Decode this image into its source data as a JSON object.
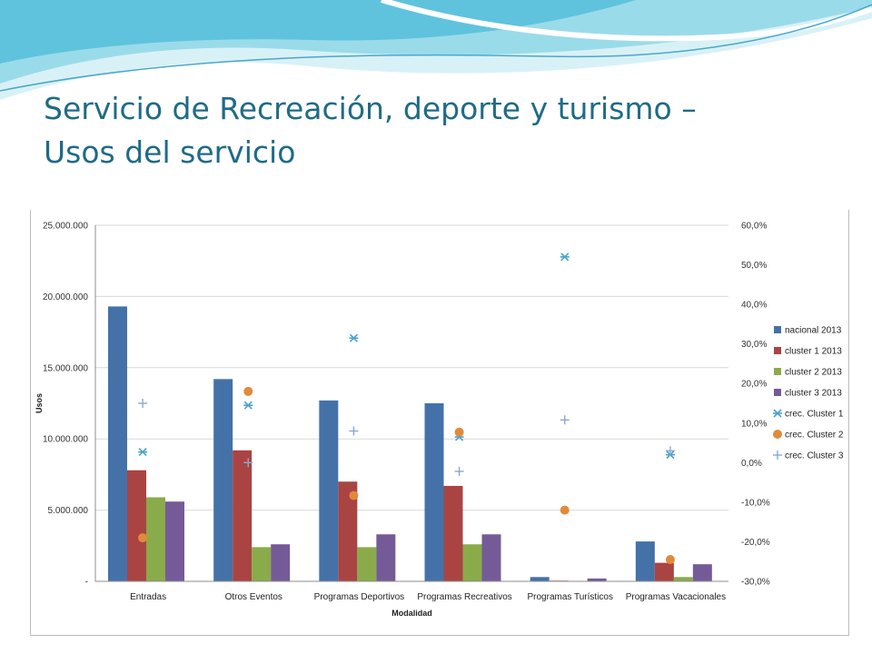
{
  "slide": {
    "title_line1": "Servicio de Recreación, deporte y turismo –",
    "title_line2": "Usos del servicio"
  },
  "theme": {
    "title_color": "#1f6b86",
    "wave_colors": [
      "#5fc3dd",
      "#9adbea",
      "#d8f1f7"
    ]
  },
  "chart_data": {
    "type": "bar",
    "xlabel": "Modalidad",
    "ylabel": "Usos",
    "ylim": [
      0,
      25000000
    ],
    "y2lim": [
      -0.3,
      0.6
    ],
    "y_ticks": [
      "-",
      "5.000.000",
      "10.000.000",
      "15.000.000",
      "20.000.000",
      "25.000.000"
    ],
    "y2_ticks": [
      "-30,0%",
      "-20,0%",
      "-10,0%",
      "0,0%",
      "10,0%",
      "20,0%",
      "30,0%",
      "40,0%",
      "50,0%",
      "60,0%"
    ],
    "grid": true,
    "legend_position": "right",
    "categories": [
      "Entradas",
      "Otros Eventos",
      "Programas Deportivos",
      "Programas Recreativos",
      "Programas Turísticos",
      "Programas Vacacionales"
    ],
    "series": [
      {
        "name": "nacional 2013",
        "axis": "left",
        "kind": "bar",
        "color": "#4472a8",
        "values": [
          19300000,
          14200000,
          12700000,
          12500000,
          300000,
          2800000
        ]
      },
      {
        "name": "cluster 1 2013",
        "axis": "left",
        "kind": "bar",
        "color": "#a94442",
        "values": [
          7800000,
          9200000,
          7000000,
          6700000,
          50000,
          1300000
        ]
      },
      {
        "name": "cluster 2 2013",
        "axis": "left",
        "kind": "bar",
        "color": "#8aab4a",
        "values": [
          5900000,
          2400000,
          2400000,
          2600000,
          30000,
          300000
        ]
      },
      {
        "name": "cluster 3 2013",
        "axis": "left",
        "kind": "bar",
        "color": "#745b98",
        "values": [
          5600000,
          2600000,
          3300000,
          3300000,
          200000,
          1200000
        ]
      },
      {
        "name": "crec. Cluster 1",
        "axis": "right",
        "kind": "star",
        "color": "#4aa3c8",
        "values": [
          0.027,
          0.145,
          0.315,
          0.065,
          0.52,
          0.02
        ]
      },
      {
        "name": "crec. Cluster 2",
        "axis": "right",
        "kind": "dot",
        "color": "#e28a3b",
        "values": [
          -0.19,
          0.18,
          -0.083,
          0.077,
          -0.12,
          -0.245
        ]
      },
      {
        "name": "crec. Cluster 3",
        "axis": "right",
        "kind": "plus",
        "color": "#8ca8cf",
        "values": [
          0.15,
          0.0,
          0.08,
          -0.022,
          0.108,
          0.03
        ]
      }
    ]
  }
}
